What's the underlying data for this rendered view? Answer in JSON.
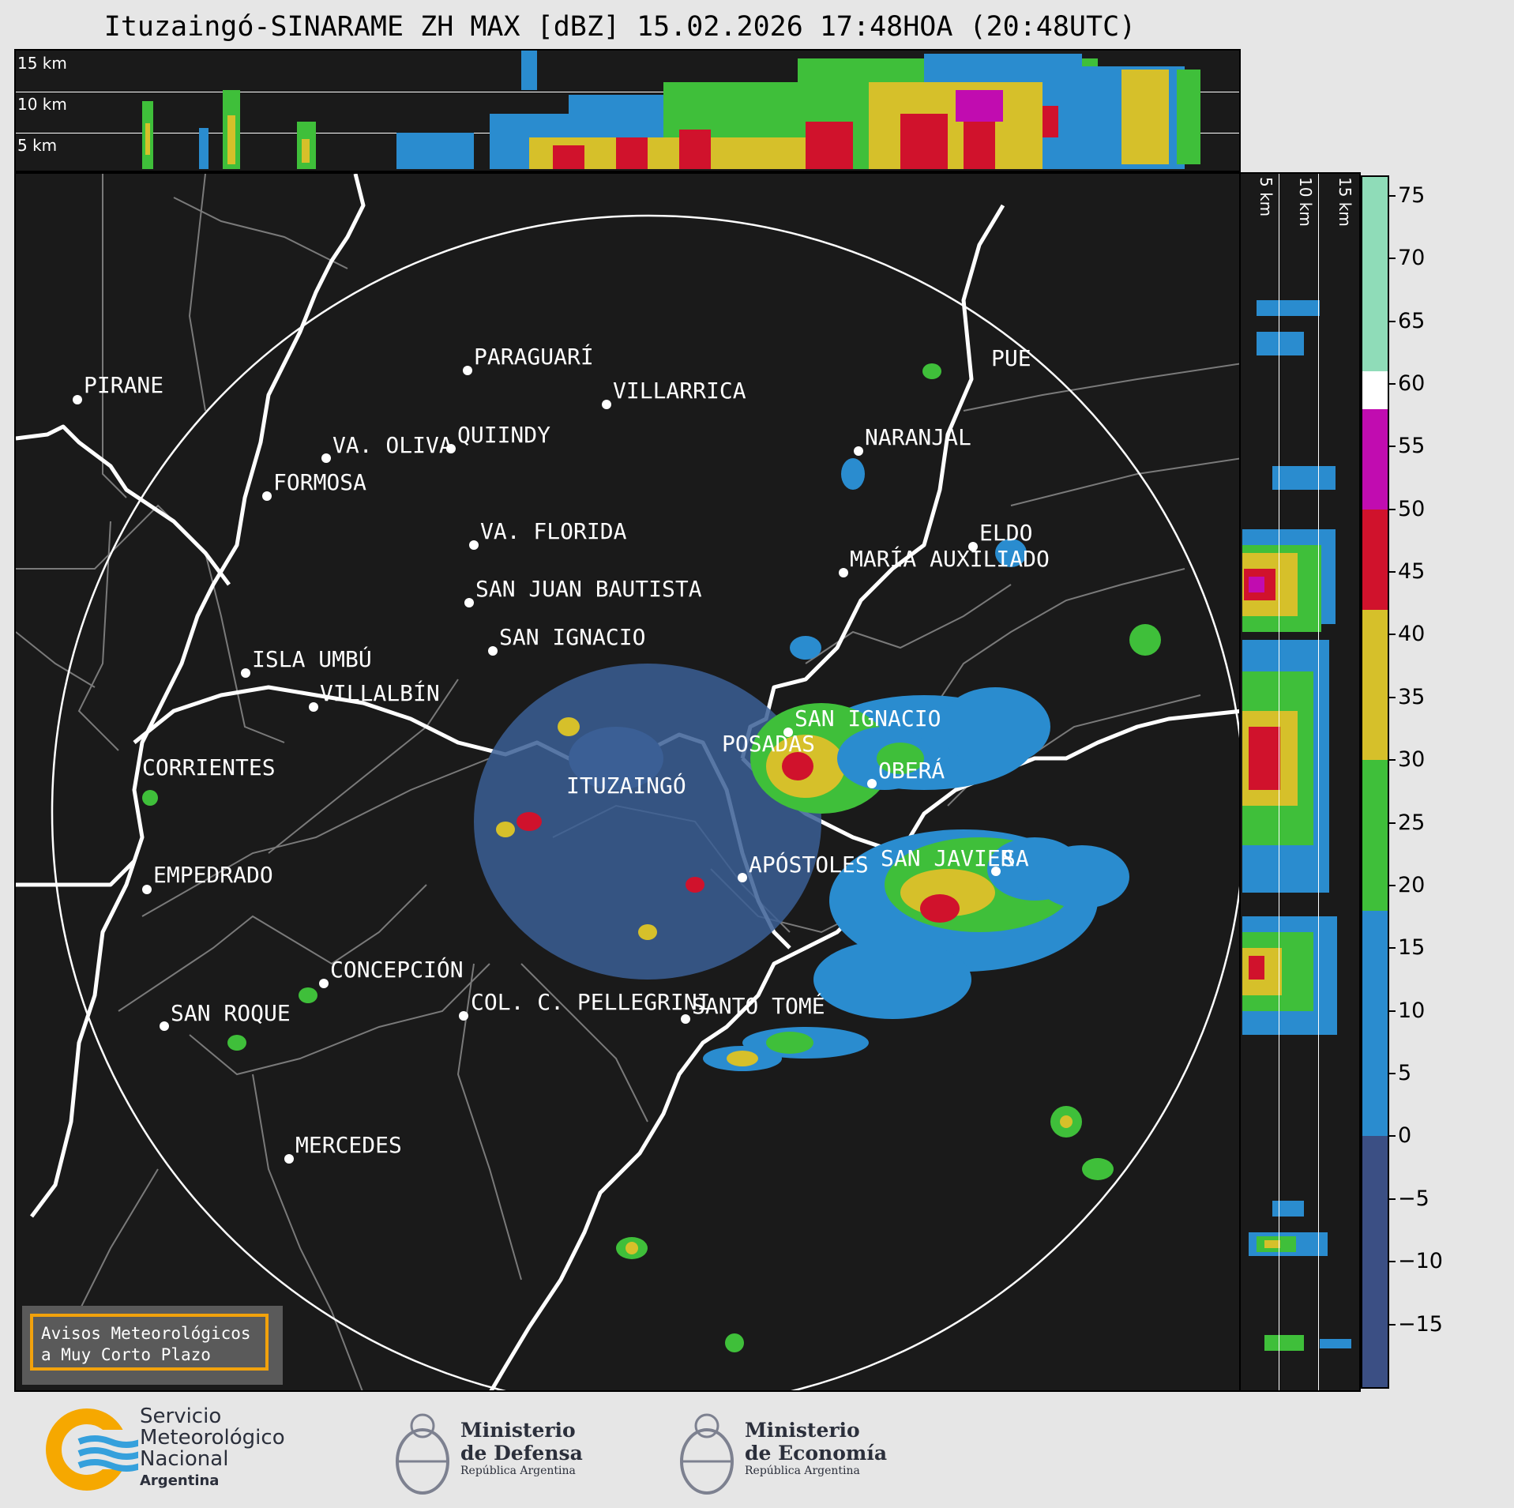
{
  "title": "Ituzaingó-SINARAME ZH MAX [dBZ] 15.02.2026 17:48HOA (20:48UTC)",
  "top_profile": {
    "height_labels": [
      "15 km",
      "10 km",
      "5 km"
    ]
  },
  "side_profile": {
    "height_labels": [
      "5 km",
      "10 km",
      "15 km"
    ]
  },
  "cities": [
    {
      "name": "PIRANE"
    },
    {
      "name": "PARAGUARÍ"
    },
    {
      "name": "VILLARRICA"
    },
    {
      "name": "VA. OLIVA"
    },
    {
      "name": "QUIINDY"
    },
    {
      "name": "NARANJAL"
    },
    {
      "name": "FORMOSA"
    },
    {
      "name": "VA. FLORIDA"
    },
    {
      "name": "ELDO"
    },
    {
      "name": "MARÍA AUXILIADO"
    },
    {
      "name": "SAN JUAN BAUTISTA"
    },
    {
      "name": "SAN IGNACIO"
    },
    {
      "name": "ISLA UMBÚ"
    },
    {
      "name": "VILLALBÍN"
    },
    {
      "name": "SAN IGNACIO"
    },
    {
      "name": "POSADAS"
    },
    {
      "name": "CORRIENTES"
    },
    {
      "name": "ITUZAINGÓ"
    },
    {
      "name": "OBERÁ"
    },
    {
      "name": "APÓSTOLES"
    },
    {
      "name": "SAN JAVIER"
    },
    {
      "name": "SA"
    },
    {
      "name": "EMPEDRADO"
    },
    {
      "name": "CONCEPCIÓN"
    },
    {
      "name": "COL. C. PELLEGRINI"
    },
    {
      "name": "SANTO TOMÉ"
    },
    {
      "name": "SAN ROQUE"
    },
    {
      "name": "MERCEDES"
    },
    {
      "name": "PUE"
    }
  ],
  "colorbar": {
    "ticks": [
      "75",
      "70",
      "65",
      "60",
      "55",
      "50",
      "45",
      "40",
      "35",
      "30",
      "25",
      "20",
      "15",
      "10",
      "5",
      "0",
      "−5",
      "−10",
      "−15"
    ],
    "min": -20,
    "max": 76.5,
    "colors": [
      {
        "from": -20,
        "to": 0,
        "color": "#3b4f84"
      },
      {
        "from": 0,
        "to": 18,
        "color": "#2a8ccf"
      },
      {
        "from": 18,
        "to": 30,
        "color": "#3fbf3a"
      },
      {
        "from": 30,
        "to": 42,
        "color": "#d6c02a"
      },
      {
        "from": 42,
        "to": 50,
        "color": "#d0122c"
      },
      {
        "from": 50,
        "to": 58,
        "color": "#c10cb0"
      },
      {
        "from": 58,
        "to": 61,
        "color": "#ffffff"
      },
      {
        "from": 61,
        "to": 76.5,
        "color": "#8fdcb8"
      }
    ]
  },
  "warning_box": {
    "line1": "Avisos Meteorológicos",
    "line2": "a Muy Corto Plazo"
  },
  "logos": {
    "smn": {
      "line1": "Servicio",
      "line2": "Meteorológico",
      "line3": "Nacional",
      "line4": "Argentina"
    },
    "defensa": {
      "line1": "Ministerio",
      "line2": "de Defensa",
      "line3": "República Argentina"
    },
    "economia": {
      "line1": "Ministerio",
      "line2": "de Economía",
      "line3": "República Argentina"
    }
  }
}
